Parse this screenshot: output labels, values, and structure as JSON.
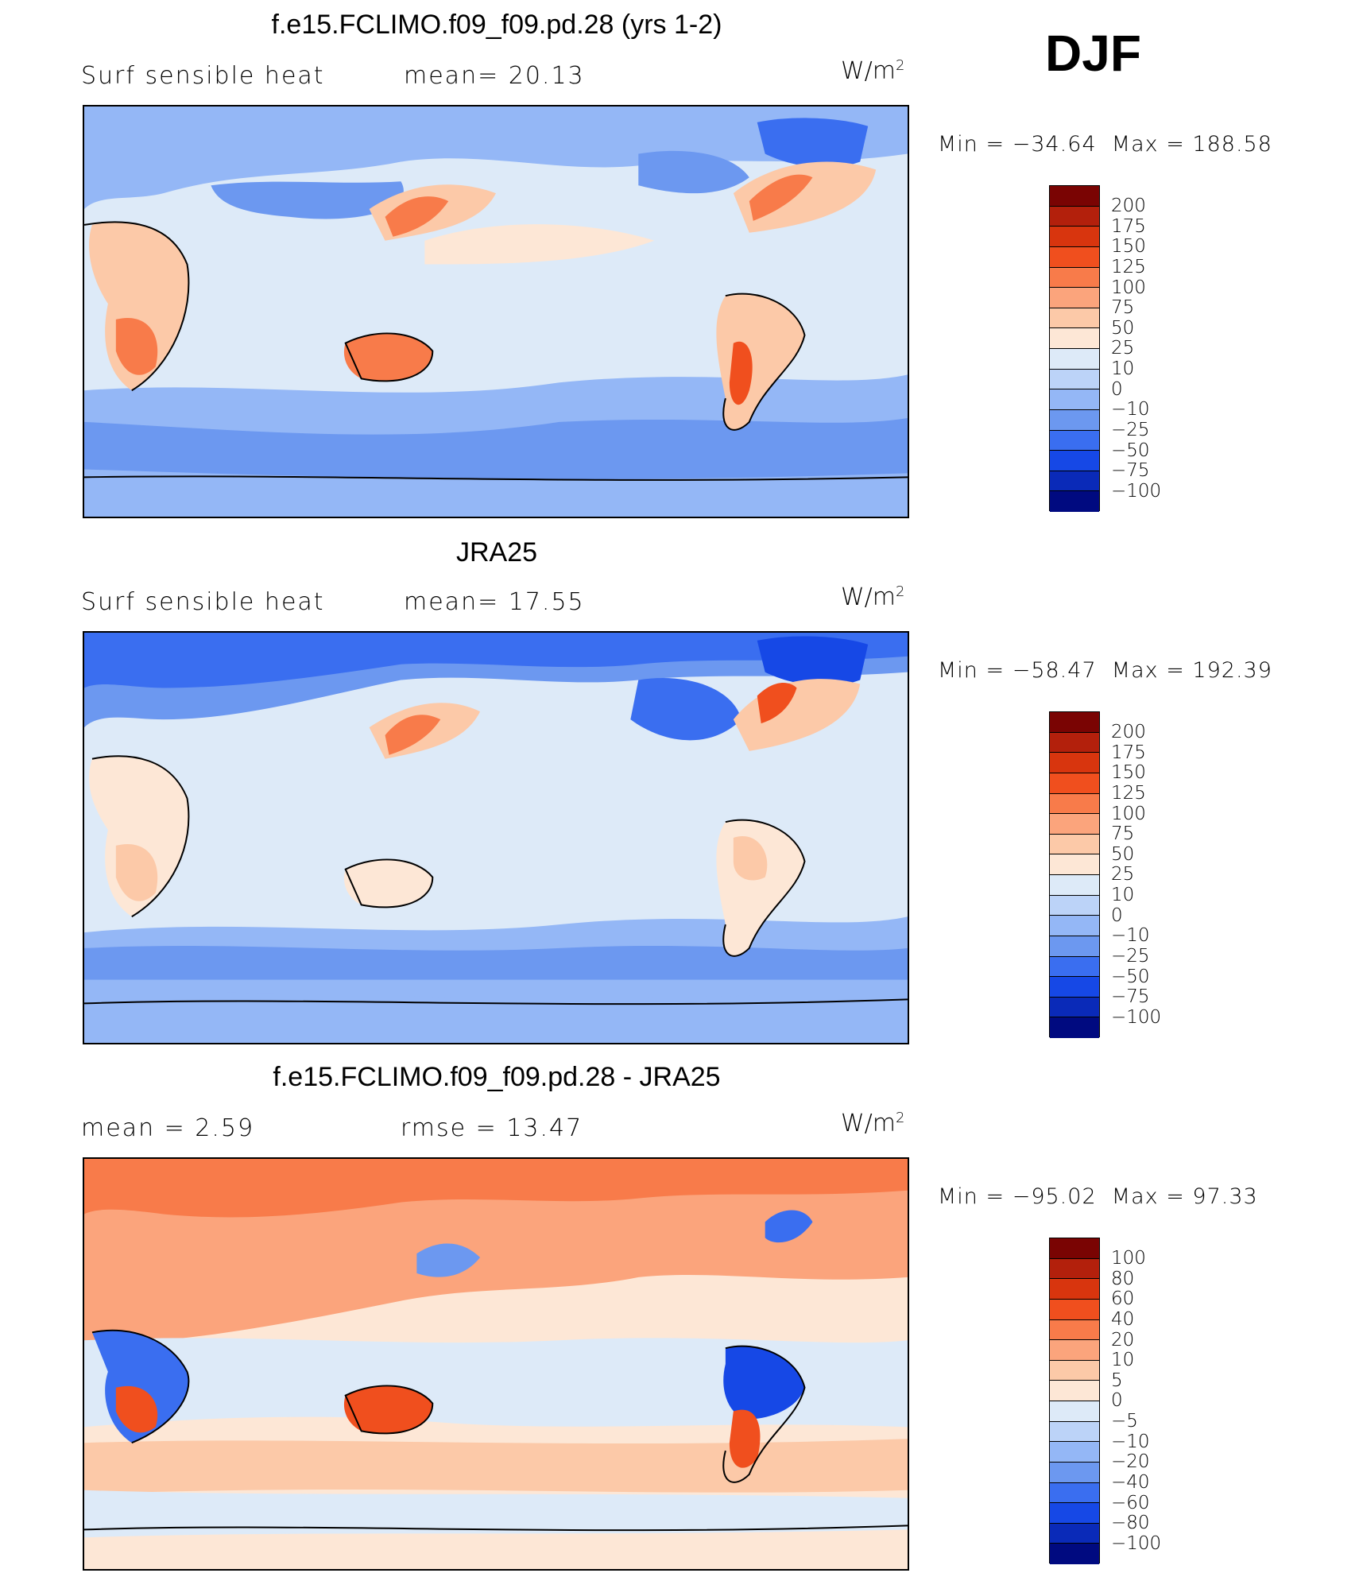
{
  "season": "DJF",
  "panels": [
    {
      "title": "f.e15.FCLIMO.f09_f09.pd.28 (yrs 1-2)",
      "variable": "Surf  sensible  heat",
      "stat_line": "mean=   20.13",
      "units": "W/m",
      "units_sup": "2",
      "min_label": "Min  =  −34.64",
      "max_label": "Max  =  188.58",
      "min": -34.64,
      "max": 188.58,
      "mean": 20.13
    },
    {
      "title": "JRA25",
      "variable": "Surf  sensible  heat",
      "stat_line": "mean=   17.55",
      "units": "W/m",
      "units_sup": "2",
      "min_label": "Min  =  −58.47",
      "max_label": "Max  =  192.39",
      "min": -58.47,
      "max": 192.39,
      "mean": 17.55
    },
    {
      "title": "f.e15.FCLIMO.f09_f09.pd.28 - JRA25",
      "variable": "mean  =     2.59",
      "stat_line": "rmse  =    13.47",
      "units": "W/m",
      "units_sup": "2",
      "min_label": "Min  =  −95.02",
      "max_label": "Max  =    97.33",
      "min": -95.02,
      "max": 97.33,
      "mean": 2.59,
      "rmse": 13.47
    }
  ],
  "colorbar_main": {
    "labels": [
      "200",
      "175",
      "150",
      "125",
      "100",
      "75",
      "50",
      "25",
      "10",
      "0",
      "−10",
      "−25",
      "−50",
      "−75",
      "−100"
    ],
    "colors": [
      "#7a0403",
      "#b3200c",
      "#d8350e",
      "#f04f1e",
      "#f87b4a",
      "#fba47c",
      "#fcc9a8",
      "#fde7d6",
      "#ddeaf8",
      "#bcd3f8",
      "#94b7f6",
      "#6c98f0",
      "#3a6ef0",
      "#1648e6",
      "#0a2ab8",
      "#000a80"
    ]
  },
  "colorbar_diff": {
    "labels": [
      "100",
      "80",
      "60",
      "40",
      "20",
      "10",
      "5",
      "0",
      "−5",
      "−10",
      "−20",
      "−40",
      "−60",
      "−80",
      "−100"
    ],
    "colors": [
      "#7a0403",
      "#b3200c",
      "#d8350e",
      "#f04f1e",
      "#f87b4a",
      "#fba47c",
      "#fcc9a8",
      "#fde7d6",
      "#ddeaf8",
      "#bcd3f8",
      "#94b7f6",
      "#6c98f0",
      "#3a6ef0",
      "#1648e6",
      "#0a2ab8",
      "#000a80"
    ]
  }
}
